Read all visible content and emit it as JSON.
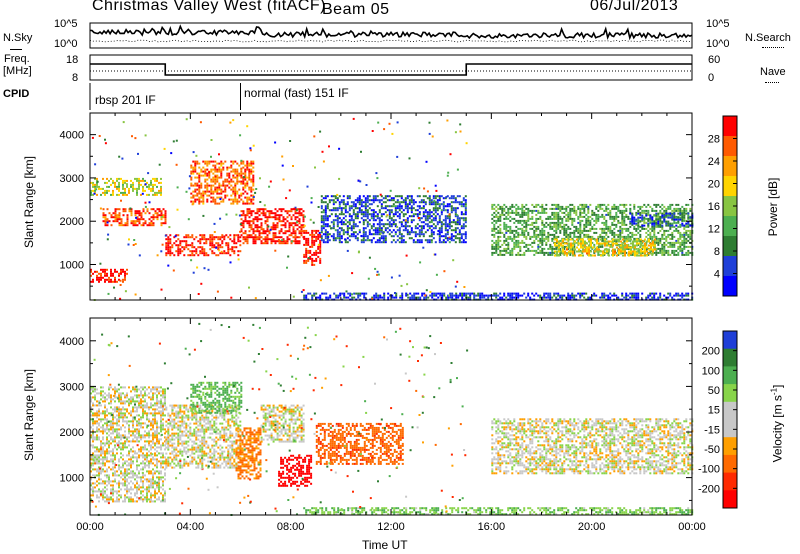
{
  "header": {
    "station": "Christmas Valley West (fitACF)",
    "beam": "Beam 05",
    "date": "06/Jul/2013"
  },
  "strip_labels": {
    "nsky": "N.Sky",
    "nsearch": "N.Search",
    "freq_line1": "Freq.",
    "freq_line2": "[MHz]",
    "nave": "Nave",
    "cpid": "CPID"
  },
  "strip_ticks": {
    "noise_top": "10^5",
    "noise_bottom": "10^0",
    "freq_top": "18",
    "freq_bottom": "8",
    "nave_top": "60",
    "nave_bottom": "0"
  },
  "cpid_segments": [
    {
      "label": "rbsp 201 IF",
      "start_hour": 0
    },
    {
      "label": "normal (fast) 151 IF",
      "start_hour": 6
    }
  ],
  "colors": {
    "power": [
      "#0000ff",
      "#1f3fd8",
      "#2e7d32",
      "#4caf50",
      "#88c542",
      "#ffd400",
      "#ff9f00",
      "#ff5a00",
      "#ff0000"
    ],
    "velocity": [
      "#1f3fd8",
      "#2e7d32",
      "#4caf50",
      "#88d44a",
      "#c8c8c8",
      "#c8c8c8",
      "#ff9f00",
      "#ff6a00",
      "#ff2a00",
      "#ff0000"
    ],
    "frequency_line": "#000000"
  },
  "chart_data": [
    {
      "type": "heatmap",
      "title": "",
      "xlabel": "",
      "ylabel": "Slant Range [km]",
      "xlim": [
        0,
        24
      ],
      "ylim": [
        180,
        4500
      ],
      "x_ticks": [
        "00:00",
        "04:00",
        "08:00",
        "12:00",
        "16:00",
        "20:00",
        "00:00"
      ],
      "y_ticks": [
        1000,
        2000,
        3000,
        4000
      ],
      "colorbar": {
        "label": "Power [dB]",
        "ticks": [
          "4",
          "8",
          "12",
          "16",
          "20",
          "24",
          "28"
        ],
        "range": [
          0,
          32
        ]
      },
      "bands": [
        {
          "x": [
            0.0,
            1.5
          ],
          "y": [
            600,
            900
          ],
          "level": 30
        },
        {
          "x": [
            0.0,
            2.8
          ],
          "y": [
            2600,
            3000
          ],
          "level": 18
        },
        {
          "x": [
            0.5,
            3.0
          ],
          "y": [
            1900,
            2300
          ],
          "level": 28
        },
        {
          "x": [
            3.0,
            6.0
          ],
          "y": [
            1200,
            1700
          ],
          "level": 30
        },
        {
          "x": [
            4.0,
            6.5
          ],
          "y": [
            2400,
            3400
          ],
          "level": 26
        },
        {
          "x": [
            6.0,
            8.5
          ],
          "y": [
            1500,
            2300
          ],
          "level": 30
        },
        {
          "x": [
            8.5,
            9.2
          ],
          "y": [
            1000,
            1800
          ],
          "level": 30
        },
        {
          "x": [
            9.2,
            15.0
          ],
          "y": [
            1500,
            2600
          ],
          "level": 6
        },
        {
          "x": [
            16.0,
            24.0
          ],
          "y": [
            1200,
            2400
          ],
          "level": 12
        },
        {
          "x": [
            18.5,
            22.5
          ],
          "y": [
            1200,
            1600
          ],
          "level": 20
        },
        {
          "x": [
            21.5,
            24.0
          ],
          "y": [
            1900,
            2200
          ],
          "level": 6
        },
        {
          "x": [
            8.5,
            24.0
          ],
          "y": [
            200,
            350
          ],
          "level": 4
        }
      ]
    },
    {
      "type": "heatmap",
      "title": "",
      "xlabel": "Time UT",
      "ylabel": "Slant Range [km]",
      "xlim": [
        0,
        24
      ],
      "ylim": [
        180,
        4500
      ],
      "x_ticks": [
        "00:00",
        "04:00",
        "08:00",
        "12:00",
        "16:00",
        "20:00",
        "00:00"
      ],
      "y_ticks": [
        1000,
        2000,
        3000,
        4000
      ],
      "colorbar": {
        "label": "Velocity [m s^-1]",
        "ticks": [
          "200",
          "100",
          "50",
          "15",
          "-15",
          "-50",
          "-100",
          "-200"
        ],
        "range": [
          -250,
          250
        ]
      },
      "bands": [
        {
          "x": [
            0.0,
            3.0
          ],
          "y": [
            500,
            3000
          ],
          "level": 0
        },
        {
          "x": [
            3.0,
            6.0
          ],
          "y": [
            1200,
            2600
          ],
          "level": 0
        },
        {
          "x": [
            4.0,
            6.0
          ],
          "y": [
            2400,
            3100
          ],
          "level": 60
        },
        {
          "x": [
            5.8,
            6.8
          ],
          "y": [
            1000,
            2100
          ],
          "level": -60
        },
        {
          "x": [
            6.8,
            8.5
          ],
          "y": [
            1800,
            2600
          ],
          "level": 0
        },
        {
          "x": [
            7.5,
            8.8
          ],
          "y": [
            800,
            1500
          ],
          "level": -250
        },
        {
          "x": [
            9.0,
            12.5
          ],
          "y": [
            1300,
            2200
          ],
          "level": -80
        },
        {
          "x": [
            16.0,
            24.0
          ],
          "y": [
            1100,
            2300
          ],
          "level": 0
        },
        {
          "x": [
            8.5,
            24.0
          ],
          "y": [
            200,
            350
          ],
          "level": 40
        }
      ]
    }
  ]
}
